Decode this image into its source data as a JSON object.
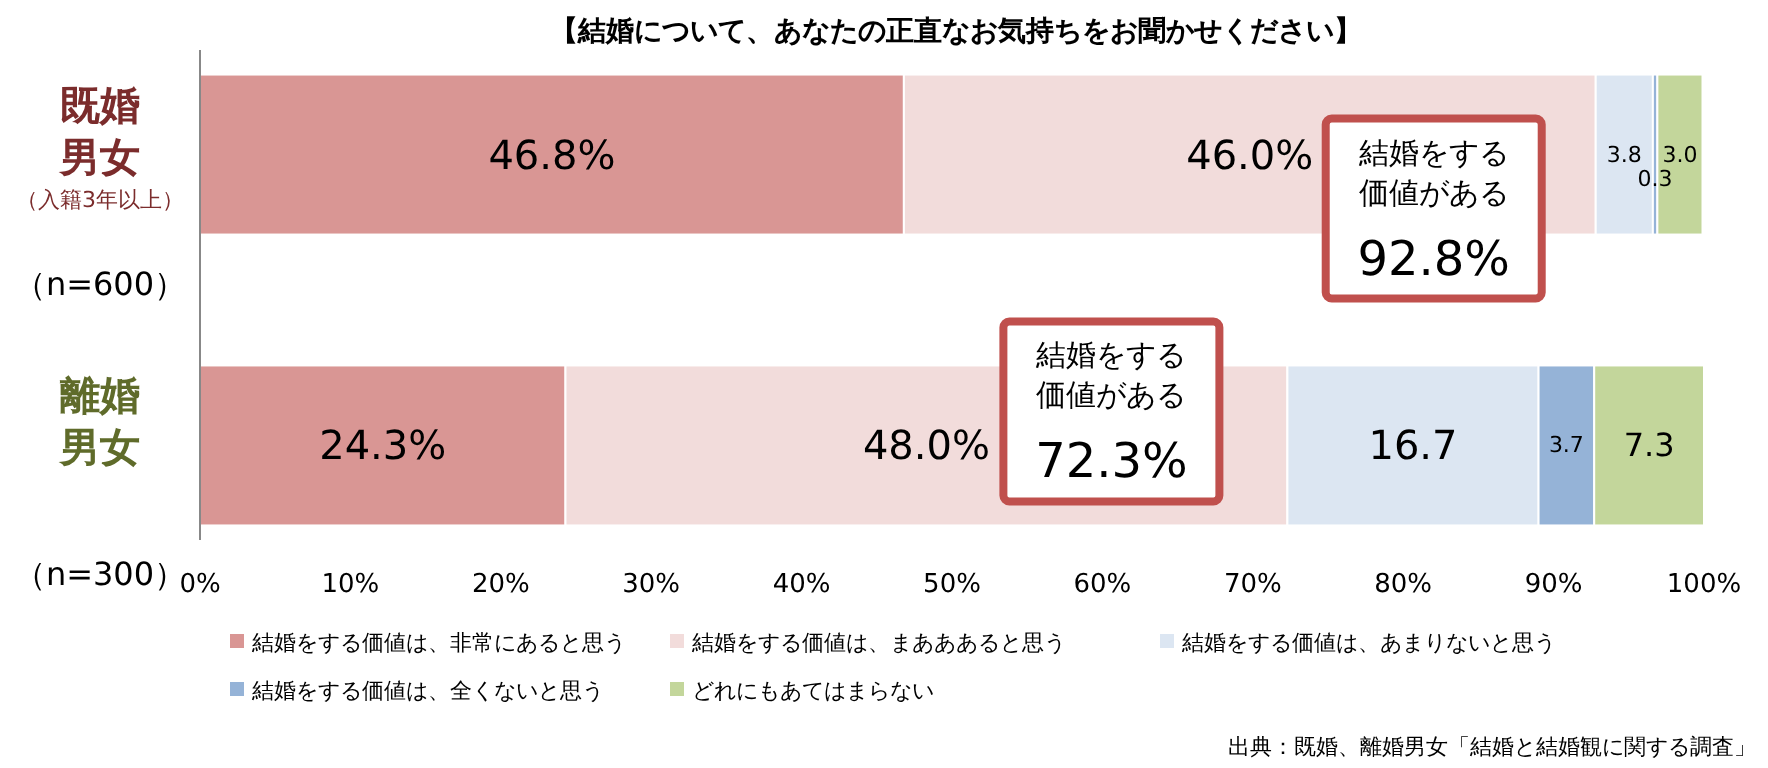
{
  "chart_data": {
    "type": "bar",
    "orientation": "horizontal",
    "stacked": true,
    "title": "【結婚について、あなたの正直なお気持ちをお聞かせください】",
    "categories": [
      "既婚男女（入籍3年以上）（n=600）",
      "離婚男女（n=300）"
    ],
    "series": [
      {
        "name": "結婚をする価値は、非常にあると思う",
        "color": "#d99694",
        "values": [
          46.8,
          24.3
        ],
        "value_labels": [
          "46.8%",
          "24.3%"
        ]
      },
      {
        "name": "結婚をする価値は、まあああると思う",
        "color": "#f2dcdb",
        "values": [
          46.0,
          48.0
        ],
        "value_labels": [
          "46.0%",
          "48.0%"
        ]
      },
      {
        "name": "結婚をする価値は、あまりないと思う",
        "color": "#dce6f2",
        "values": [
          3.8,
          16.7
        ],
        "value_labels": [
          "3.8",
          "16.7"
        ]
      },
      {
        "name": "結婚をする価値は、全くないと思う",
        "color": "#95b3d7",
        "values": [
          0.3,
          3.7
        ],
        "value_labels": [
          "0.3",
          "3.7"
        ]
      },
      {
        "name": "どれにもあてはまらない",
        "color": "#c3d69b",
        "values": [
          3.0,
          7.3
        ],
        "value_labels": [
          "3.0",
          "7.3"
        ]
      }
    ],
    "xlim": [
      0,
      100
    ],
    "xticks": [
      {
        "value": 0,
        "label": "0%"
      },
      {
        "value": 10,
        "label": "10%"
      },
      {
        "value": 20,
        "label": "20%"
      },
      {
        "value": 30,
        "label": "30%"
      },
      {
        "value": 40,
        "label": "40%"
      },
      {
        "value": 50,
        "label": "50%"
      },
      {
        "value": 60,
        "label": "60%"
      },
      {
        "value": 70,
        "label": "70%"
      },
      {
        "value": 80,
        "label": "80%"
      },
      {
        "value": 90,
        "label": "90%"
      },
      {
        "value": 100,
        "label": "100%"
      }
    ],
    "grid": false,
    "legend": "bottom",
    "annotations": [
      {
        "text": "結婚をする価値がある92.8%",
        "x": 92.8
      },
      {
        "text": "結婚をする価値がある72.3%",
        "x": 72.3
      },
      "出典：既婚、離婚男女「結婚と結婚観に関する調査」"
    ]
  }
}
